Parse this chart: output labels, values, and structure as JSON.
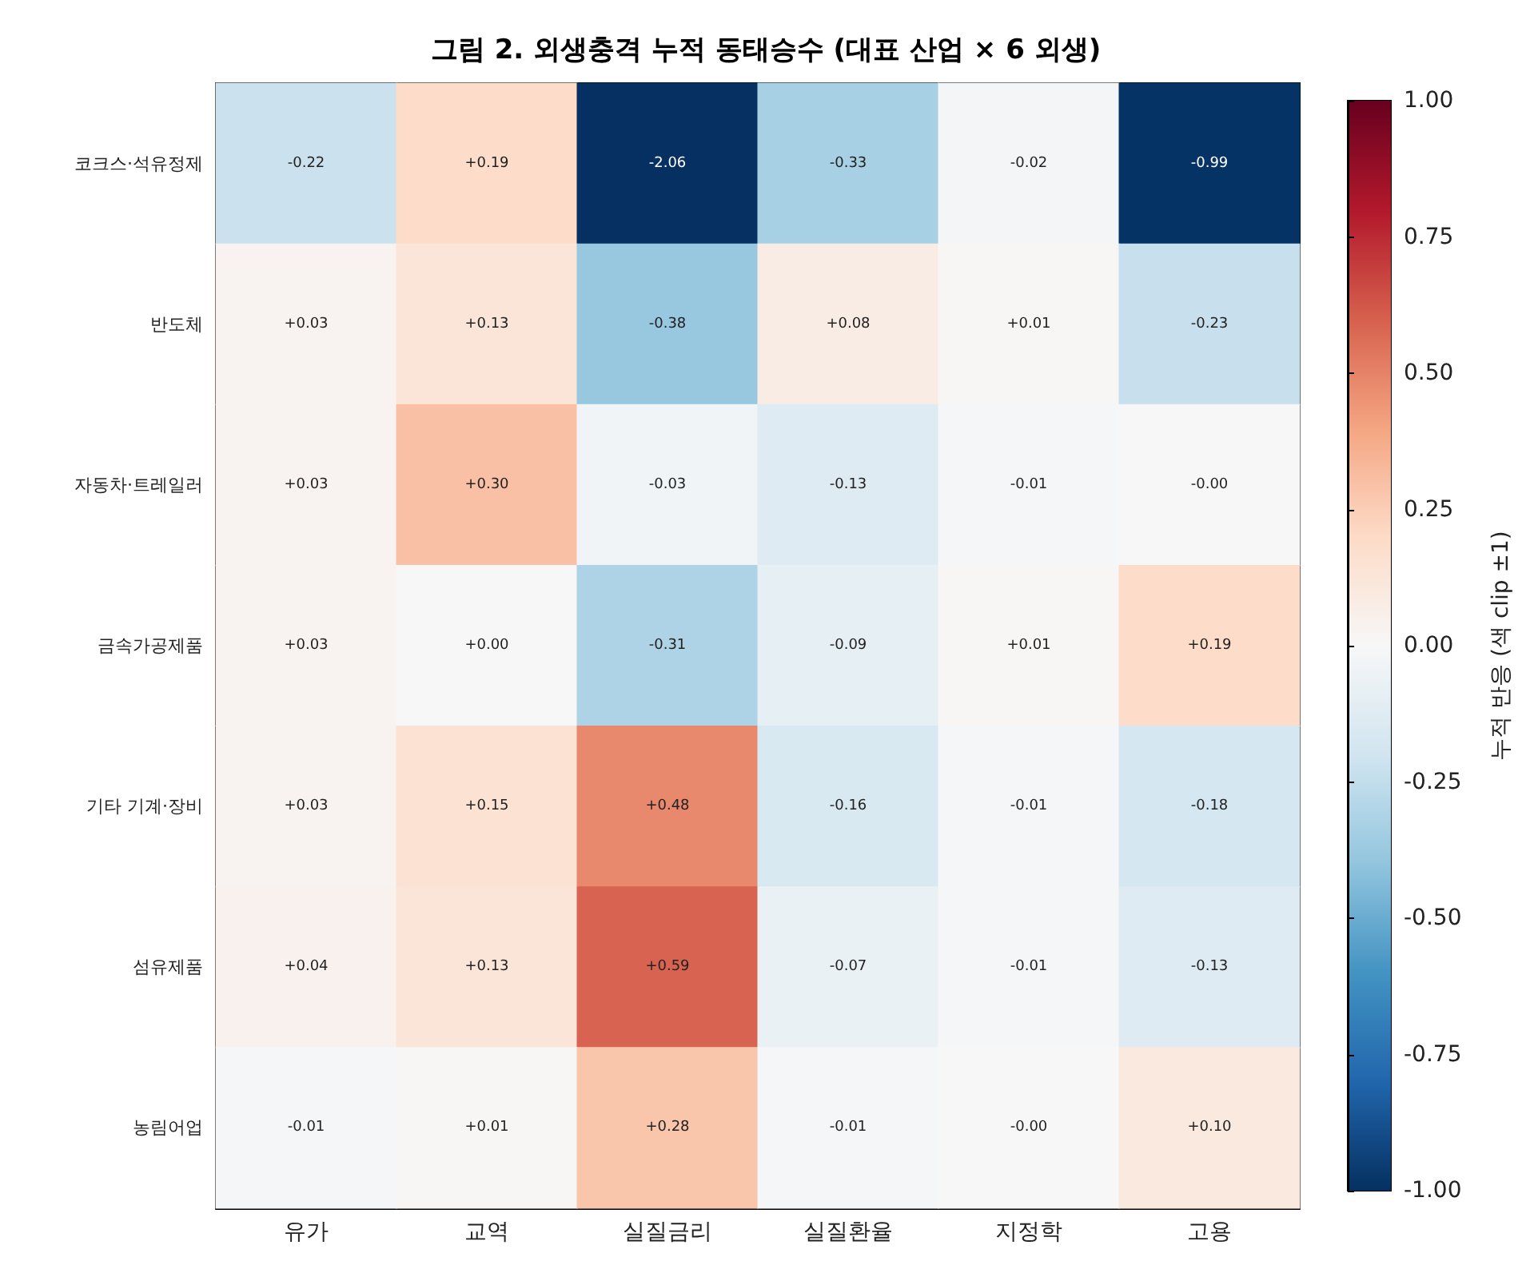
{
  "chart_data": {
    "type": "heatmap",
    "title": "그림 2. 외생충격 누적 동태승수 (대표 산업 × 6 외생)",
    "clabel": "누적 반응 (색 clip ±1)",
    "categories": [
      "유가",
      "교역",
      "실질금리",
      "실질환율",
      "지정학",
      "고용"
    ],
    "y_categories": [
      "코크스·석유정제",
      "반도체",
      "자동차·트레일러",
      "금속가공제품",
      "기타 기계·장비",
      "섬유제품",
      "농림어업"
    ],
    "cells": [
      [
        -0.22,
        0.19,
        -2.06,
        -0.33,
        -0.02,
        -0.99
      ],
      [
        0.03,
        0.13,
        -0.38,
        0.08,
        0.01,
        -0.23
      ],
      [
        0.03,
        0.3,
        -0.03,
        -0.13,
        -0.01,
        0.0
      ],
      [
        0.03,
        0.0,
        -0.31,
        -0.09,
        0.01,
        0.19
      ],
      [
        0.03,
        0.15,
        0.48,
        -0.16,
        -0.01,
        -0.18
      ],
      [
        0.04,
        0.13,
        0.59,
        -0.07,
        -0.01,
        -0.13
      ],
      [
        -0.01,
        0.01,
        0.28,
        -0.01,
        0.0,
        0.1
      ]
    ],
    "cell_labels": [
      [
        "-0.22",
        "+0.19",
        "-2.06",
        "-0.33",
        "-0.02",
        "-0.99"
      ],
      [
        "+0.03",
        "+0.13",
        "-0.38",
        "+0.08",
        "+0.01",
        "-0.23"
      ],
      [
        "+0.03",
        "+0.30",
        "-0.03",
        "-0.13",
        "-0.01",
        "-0.00"
      ],
      [
        "+0.03",
        "+0.00",
        "-0.31",
        "-0.09",
        "+0.01",
        "+0.19"
      ],
      [
        "+0.03",
        "+0.15",
        "+0.48",
        "-0.16",
        "-0.01",
        "-0.18"
      ],
      [
        "+0.04",
        "+0.13",
        "+0.59",
        "-0.07",
        "-0.01",
        "-0.13"
      ],
      [
        "-0.01",
        "+0.01",
        "+0.28",
        "-0.01",
        "-0.00",
        "+0.10"
      ]
    ],
    "clim": [
      -1,
      1
    ],
    "cticks": [
      {
        "value": -1,
        "label": "-1.00"
      },
      {
        "value": -0.75,
        "label": "-0.75"
      },
      {
        "value": -0.5,
        "label": "-0.50"
      },
      {
        "value": -0.25,
        "label": "-0.25"
      },
      {
        "value": 0,
        "label": "0.00"
      },
      {
        "value": 0.25,
        "label": "0.25"
      },
      {
        "value": 0.5,
        "label": "0.50"
      },
      {
        "value": 0.75,
        "label": "0.75"
      },
      {
        "value": 1,
        "label": "1.00"
      }
    ]
  }
}
